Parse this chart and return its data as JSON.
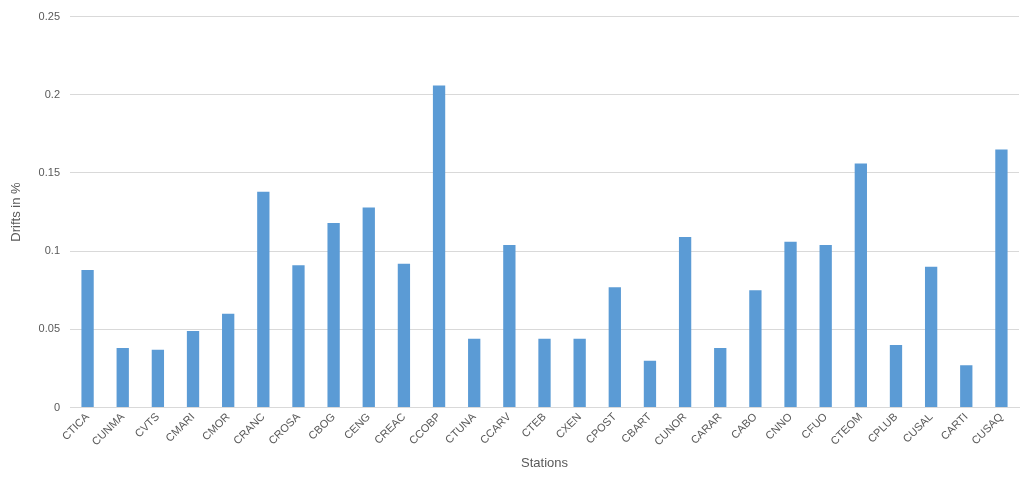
{
  "chart_data": {
    "type": "bar",
    "xlabel": "Stations",
    "ylabel": "Drifts in %",
    "categories": [
      "CTICA",
      "CUNMA",
      "CVTS",
      "CMARI",
      "CMOR",
      "CRANC",
      "CROSA",
      "CBOG",
      "CENG",
      "CREAC",
      "CCOBP",
      "CTUNA",
      "CCARV",
      "CTEB",
      "CXEN",
      "CPOST",
      "CBART",
      "CUNOR",
      "CARAR",
      "CABO",
      "CNNO",
      "CFUO",
      "CTEOM",
      "CPLUB",
      "CUSAL",
      "CARTI",
      "CUSAQ"
    ],
    "values": [
      0.088,
      0.038,
      0.037,
      0.049,
      0.06,
      0.138,
      0.091,
      0.118,
      0.128,
      0.092,
      0.206,
      0.044,
      0.104,
      0.044,
      0.044,
      0.077,
      0.03,
      0.109,
      0.038,
      0.075,
      0.106,
      0.104,
      0.156,
      0.04,
      0.09,
      0.027,
      0.165
    ],
    "color": "#5b9bd5",
    "ylim": [
      0,
      0.25
    ],
    "yticks": [
      0,
      0.05,
      0.1,
      0.15,
      0.2,
      0.25
    ],
    "grid": "y"
  }
}
